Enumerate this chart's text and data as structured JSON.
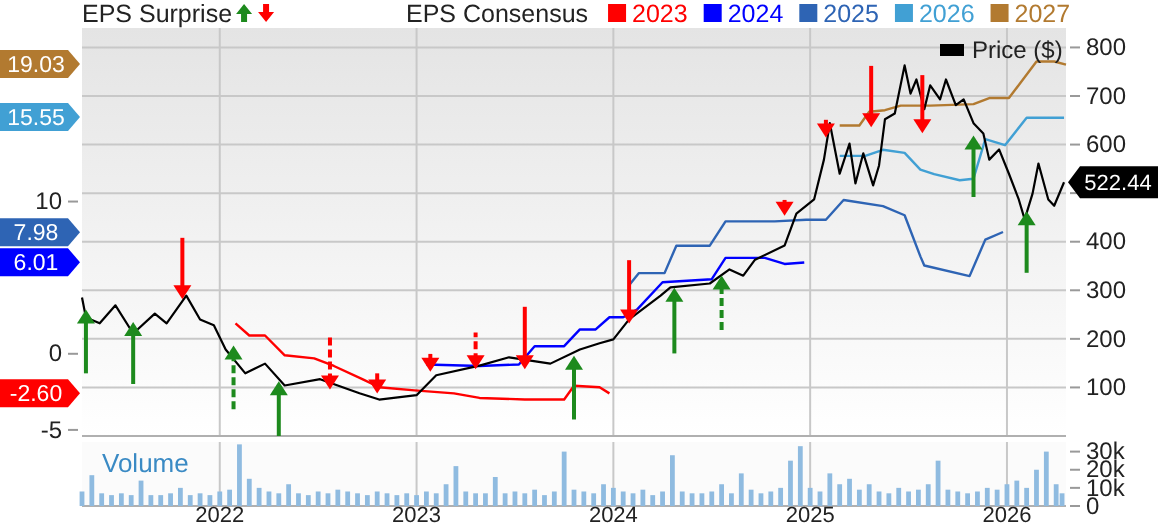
{
  "chart_data": [
    {
      "type": "line",
      "legend_title": "EPS Consensus",
      "legend": "top",
      "grid": true,
      "tick_labels": "y",
      "annotations": [
        "EPS Surprise",
        {
          "text": "19.03",
          "y": 19.03
        },
        {
          "text": "15.55",
          "y": 15.55
        },
        {
          "text": "7.98",
          "y": 7.98
        },
        {
          "text": "6.01",
          "y": 6.01
        },
        {
          "text": "-2.60",
          "y": -2.6
        }
      ],
      "xlim": [
        2021.3,
        2026.3
      ],
      "xticks": [
        2022,
        2023,
        2024,
        2025,
        2026
      ],
      "ylim": [
        -5.4,
        21.4
      ],
      "yticks": [
        -5,
        0,
        10
      ],
      "y2lim": [
        0,
        840
      ],
      "y2ticks": [
        100,
        200,
        300,
        400,
        {
          "value": 500,
          "label": null
        },
        600,
        700,
        800
      ],
      "series": [
        {
          "name": "2023",
          "color": "#ff0000",
          "x": [
            2022.08,
            2022.15,
            2022.23,
            2022.33,
            2022.48,
            2022.58,
            2022.73,
            2022.81,
            2022.99,
            2023.19,
            2023.32,
            2023.55,
            2023.75,
            2023.8,
            2023.93,
            2023.98
          ],
          "values": [
            2.0,
            1.2,
            1.2,
            -0.1,
            -0.3,
            -0.8,
            -1.7,
            -2.2,
            -2.4,
            -2.6,
            -2.9,
            -3.0,
            -3.0,
            -2.1,
            -2.2,
            -2.6
          ]
        },
        {
          "name": "2024",
          "color": "#0000ff",
          "x": [
            2023.05,
            2023.32,
            2023.52,
            2023.6,
            2023.75,
            2023.83,
            2023.91,
            2023.98,
            2024.05,
            2024.12,
            2024.25,
            2024.5,
            2024.57,
            2024.77,
            2024.87,
            2024.97
          ],
          "values": [
            -0.7,
            -0.8,
            -0.7,
            0.5,
            0.5,
            1.6,
            1.6,
            2.4,
            2.4,
            2.9,
            4.7,
            4.9,
            6.3,
            6.3,
            5.9,
            6.0
          ]
        },
        {
          "name": "2025",
          "color": "#2e64b4",
          "x": [
            2024.08,
            2024.13,
            2024.26,
            2024.32,
            2024.49,
            2024.57,
            2024.82,
            2024.98,
            2025.08,
            2025.17,
            2025.37,
            2025.48,
            2025.56,
            2025.58,
            2025.81,
            2025.89,
            2025.98
          ],
          "values": [
            4.5,
            5.3,
            5.3,
            7.1,
            7.1,
            8.7,
            8.7,
            8.8,
            8.8,
            10.1,
            9.7,
            9.1,
            6.4,
            5.8,
            5.1,
            7.5,
            8.0
          ]
        },
        {
          "name": "2026",
          "color": "#41a0d4",
          "x": [
            2025.15,
            2025.28,
            2025.37,
            2025.48,
            2025.56,
            2025.63,
            2025.76,
            2025.83,
            2025.89,
            2025.99,
            2026.1,
            2026.29
          ],
          "values": [
            13.0,
            13.0,
            13.4,
            13.2,
            12.1,
            11.8,
            11.4,
            11.5,
            14.1,
            13.7,
            15.5,
            15.5
          ]
        },
        {
          "name": "2027",
          "color": "#b27a30",
          "x": [
            2025.15,
            2025.25,
            2025.3,
            2025.38,
            2025.46,
            2025.61,
            2025.83,
            2025.91,
            2026.01,
            2026.15,
            2026.24,
            2026.3
          ],
          "values": [
            15.0,
            15.0,
            15.9,
            16.0,
            16.3,
            16.3,
            16.4,
            16.8,
            16.8,
            19.2,
            19.2,
            19.0
          ]
        },
        {
          "name": "Price ($)",
          "color": "#000000",
          "axis": "y2",
          "x": [
            2021.3,
            2021.32,
            2021.39,
            2021.47,
            2021.56,
            2021.67,
            2021.73,
            2021.83,
            2021.9,
            2021.97,
            2022.03,
            2022.13,
            2022.23,
            2022.33,
            2022.51,
            2022.71,
            2022.81,
            2023.0,
            2023.1,
            2023.32,
            2023.47,
            2023.68,
            2023.83,
            2023.93,
            2024.0,
            2024.08,
            2024.24,
            2024.29,
            2024.49,
            2024.59,
            2024.66,
            2024.72,
            2024.87,
            2024.93,
            2025.02,
            2025.07,
            2025.1,
            2025.15,
            2025.2,
            2025.23,
            2025.27,
            2025.32,
            2025.35,
            2025.38,
            2025.43,
            2025.48,
            2025.51,
            2025.54,
            2025.58,
            2025.61,
            2025.66,
            2025.69,
            2025.74,
            2025.78,
            2025.83,
            2025.88,
            2025.91,
            2025.96,
            2026.01,
            2026.06,
            2026.09,
            2026.13,
            2026.16,
            2026.21,
            2026.24,
            2026.29
          ],
          "values": [
            285,
            244,
            232,
            269,
            211,
            252,
            232,
            289,
            240,
            228,
            178,
            129,
            149,
            104,
            117,
            88,
            75,
            84,
            125,
            145,
            162,
            149,
            178,
            191,
            199,
            240,
            289,
            306,
            314,
            343,
            330,
            363,
            392,
            458,
            487,
            569,
            644,
            540,
            602,
            520,
            582,
            516,
            557,
            652,
            664,
            763,
            705,
            734,
            673,
            722,
            693,
            734,
            681,
            693,
            644,
            623,
            569,
            590,
            540,
            487,
            446,
            499,
            561,
            487,
            474,
            522.44
          ],
          "value_labels": [
            null,
            null,
            null,
            null,
            null,
            null,
            null,
            null,
            null,
            null,
            null,
            null,
            null,
            null,
            null,
            null,
            null,
            null,
            null,
            null,
            null,
            null,
            null,
            null,
            null,
            null,
            null,
            null,
            null,
            null,
            null,
            null,
            null,
            null,
            null,
            null,
            null,
            null,
            null,
            null,
            null,
            null,
            null,
            null,
            null,
            null,
            null,
            null,
            null,
            null,
            null,
            null,
            null,
            null,
            null,
            null,
            null,
            null,
            null,
            null,
            null,
            null,
            null,
            null,
            null,
            "522.44"
          ]
        },
        {
          "type": "scatter",
          "axis": "y2",
          "marker": "triangle",
          "line_style": "solid",
          "color": "#1d8a1d",
          "x": [
            2021.32,
            2021.56,
            2022.3,
            2023.8,
            2024.31,
            2025.83,
            2026.1
          ],
          "values": [
            244,
            218,
            96,
            149,
            289,
            602,
            446
          ],
          "errors": [
            [
              129,
              244
            ],
            [
              107,
              218
            ],
            [
              0,
              96
            ],
            [
              34,
              149
            ],
            [
              170,
              289
            ],
            [
              492,
              602
            ],
            [
              336,
              446
            ]
          ]
        },
        {
          "type": "scatter",
          "axis": "y2",
          "marker": "triangle",
          "line_style": "dashed",
          "color": "#1d8a1d",
          "x": [
            2022.07,
            2024.55
          ],
          "values": [
            170,
            314
          ],
          "errors": [
            [
              55,
              170
            ],
            [
              218,
              314
            ]
          ]
        },
        {
          "type": "scatter",
          "axis": "y2",
          "marker": "triangle",
          "line_style": "solid",
          "color": "#ff0000",
          "x": [
            2021.81,
            2022.8,
            2023.07,
            2023.55,
            2024.08,
            2024.87,
            2025.08,
            2025.31,
            2025.57
          ],
          "values": [
            298,
            104,
            149,
            154,
            248,
            470,
            631,
            652,
            640
          ],
          "errors": [
            [
              298,
              408
            ],
            [
              104,
              129
            ],
            [
              149,
              169
            ],
            [
              154,
              266
            ],
            [
              248,
              362
            ],
            [
              470,
              486
            ],
            [
              631,
              651
            ],
            [
              652,
              762
            ],
            [
              640,
              743
            ]
          ]
        },
        {
          "type": "scatter",
          "axis": "y2",
          "marker": "triangle",
          "line_style": "dashed",
          "color": "#ff0000",
          "x": [
            2022.56,
            2023.3
          ],
          "values": [
            112,
            154
          ],
          "errors": [
            [
              112,
              211
            ],
            [
              154,
              213
            ]
          ]
        }
      ]
    },
    {
      "type": "bar",
      "ylabel": "Volume",
      "grid": "x",
      "xlim": [
        2021.3,
        2026.3
      ],
      "xticks": [
        2022,
        2023,
        2024,
        2025,
        2026
      ],
      "ylim": [
        0,
        35.3
      ],
      "yticks": [
        {
          "value": 0,
          "label": "0"
        },
        {
          "value": 10,
          "label": "10k"
        },
        {
          "value": 20,
          "label": "20k"
        },
        {
          "value": 30,
          "label": "30k"
        }
      ],
      "series": [
        {
          "color": "#8fbbe0",
          "x": [
            2021.3,
            2021.35,
            2021.4,
            2021.45,
            2021.5,
            2021.55,
            2021.6,
            2021.65,
            2021.7,
            2021.75,
            2021.8,
            2021.85,
            2021.9,
            2021.95,
            2022.0,
            2022.05,
            2022.1,
            2022.15,
            2022.2,
            2022.25,
            2022.3,
            2022.35,
            2022.4,
            2022.45,
            2022.5,
            2022.55,
            2022.6,
            2022.65,
            2022.7,
            2022.75,
            2022.8,
            2022.85,
            2022.9,
            2022.95,
            2023.0,
            2023.05,
            2023.1,
            2023.15,
            2023.2,
            2023.25,
            2023.3,
            2023.35,
            2023.4,
            2023.45,
            2023.5,
            2023.55,
            2023.6,
            2023.65,
            2023.7,
            2023.75,
            2023.8,
            2023.85,
            2023.9,
            2023.95,
            2024.0,
            2024.05,
            2024.1,
            2024.15,
            2024.2,
            2024.25,
            2024.3,
            2024.35,
            2024.4,
            2024.45,
            2024.5,
            2024.55,
            2024.6,
            2024.65,
            2024.7,
            2024.75,
            2024.8,
            2024.85,
            2024.9,
            2024.95,
            2025.0,
            2025.05,
            2025.1,
            2025.15,
            2025.2,
            2025.25,
            2025.3,
            2025.35,
            2025.4,
            2025.45,
            2025.5,
            2025.55,
            2025.6,
            2025.65,
            2025.7,
            2025.75,
            2025.8,
            2025.85,
            2025.9,
            2025.95,
            2026.0,
            2026.05,
            2026.1,
            2026.15,
            2026.2,
            2026.25,
            2026.28
          ],
          "values": [
            8,
            17,
            7,
            6,
            7,
            6,
            14,
            6,
            6,
            7,
            10,
            6,
            7,
            6,
            8,
            9,
            34,
            15,
            10,
            8,
            7,
            12,
            7,
            6,
            8,
            7,
            9,
            8,
            7,
            6,
            8,
            7,
            6,
            7,
            6,
            8,
            7,
            12,
            22,
            8,
            7,
            7,
            16,
            7,
            8,
            7,
            9,
            6,
            8,
            30,
            9,
            8,
            7,
            12,
            10,
            8,
            7,
            9,
            6,
            8,
            28,
            8,
            7,
            7,
            8,
            12,
            7,
            18,
            9,
            7,
            8,
            10,
            25,
            33,
            10,
            8,
            18,
            12,
            15,
            9,
            12,
            8,
            7,
            10,
            8,
            9,
            12,
            25,
            9,
            8,
            7,
            8,
            10,
            9,
            12,
            14,
            10,
            20,
            30,
            12,
            7
          ]
        }
      ]
    }
  ]
}
